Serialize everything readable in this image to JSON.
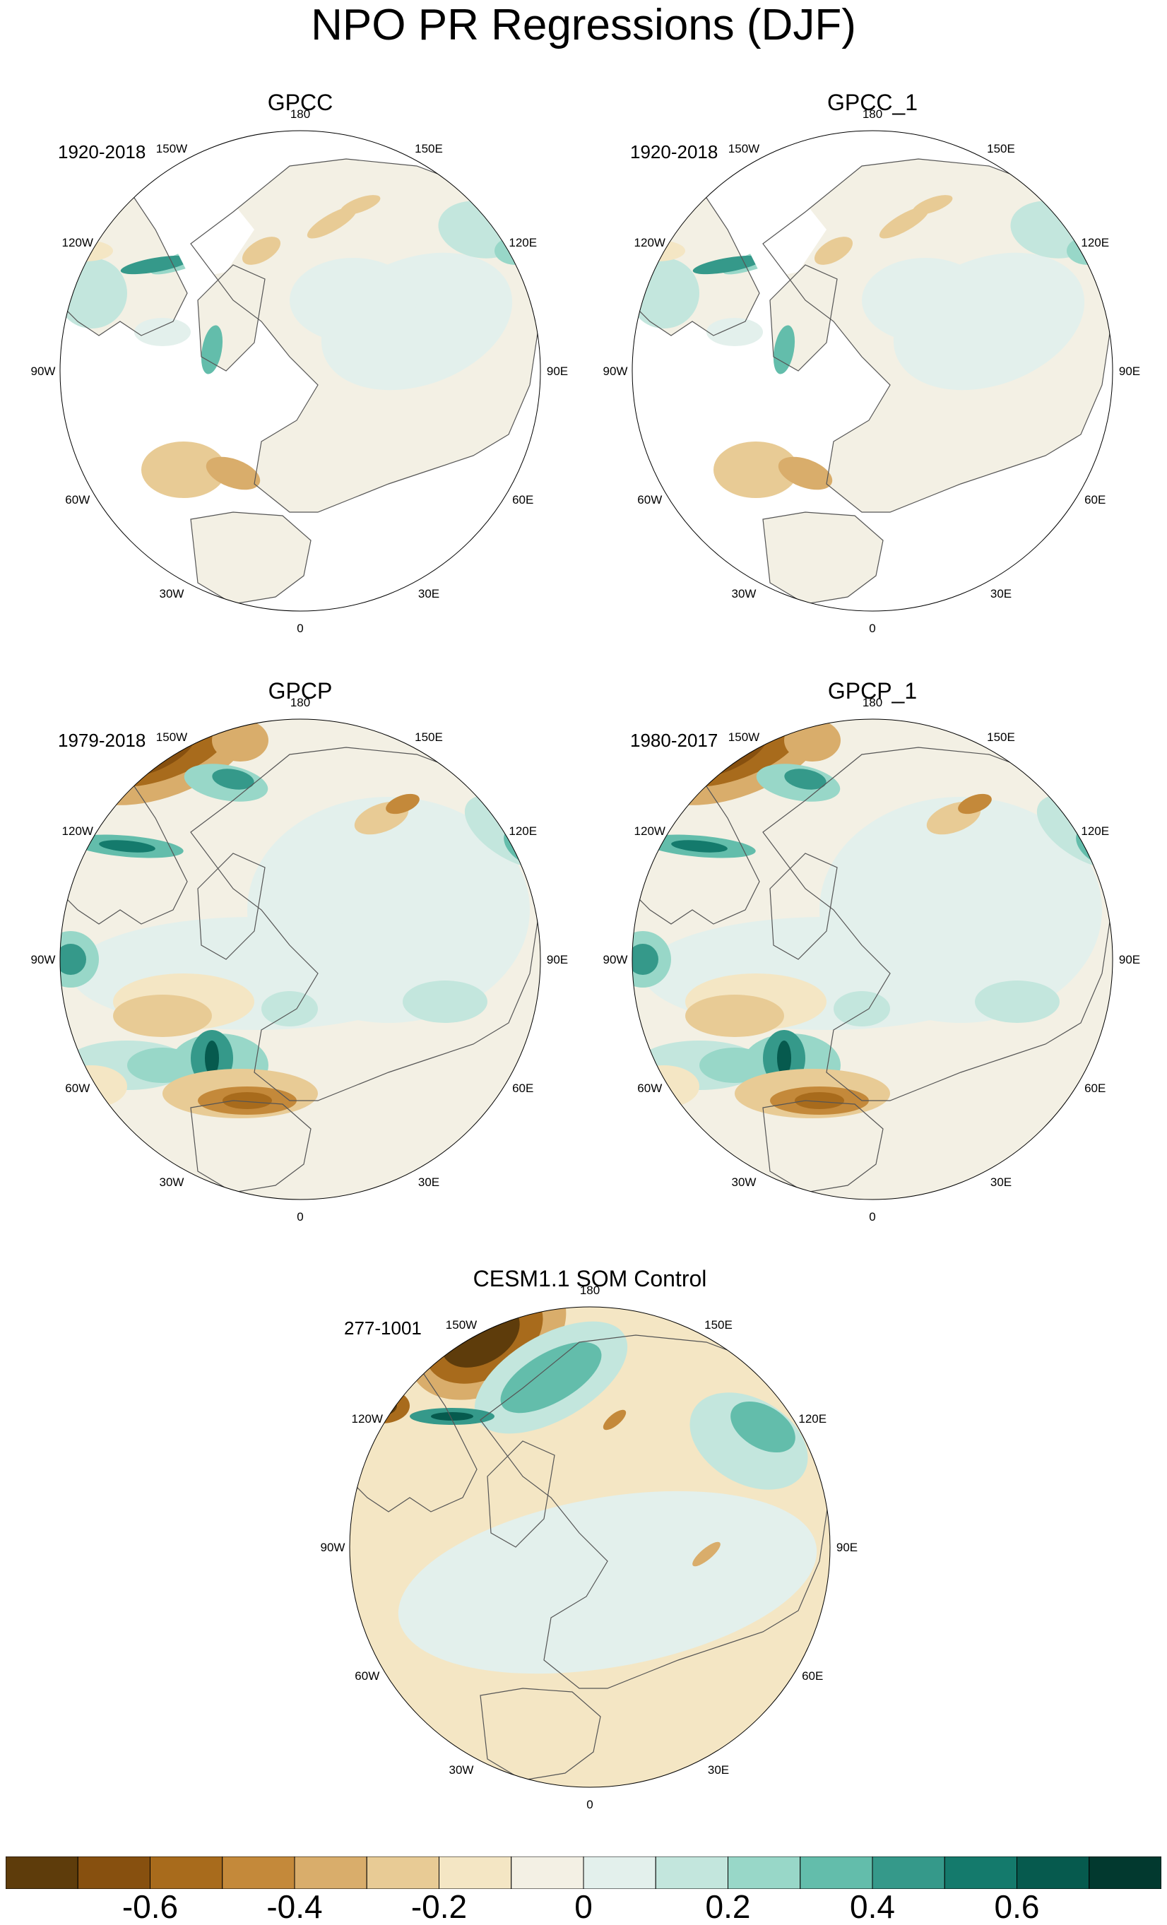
{
  "title": "NPO PR Regressions (DJF)",
  "panels": [
    {
      "id": "gpcc",
      "title": "GPCC",
      "period": "1920-2018"
    },
    {
      "id": "gpcc1",
      "title": "GPCC_1",
      "period": "1920-2018"
    },
    {
      "id": "gpcp",
      "title": "GPCP",
      "period": "1979-2018"
    },
    {
      "id": "gpcp1",
      "title": "GPCP_1",
      "period": "1980-2017"
    },
    {
      "id": "cesm",
      "title": "CESM1.1 SOM Control",
      "period": "277-1001"
    }
  ],
  "longitude_labels": [
    "180",
    "150E",
    "120E",
    "90E",
    "60E",
    "30E",
    "0",
    "30W",
    "60W",
    "90W",
    "120W",
    "150W"
  ],
  "colorbar": {
    "colors": [
      "#5e3c0b",
      "#87500f",
      "#a86b1c",
      "#c4893a",
      "#d9ad6b",
      "#e8cb95",
      "#f4e6c4",
      "#f3f0e4",
      "#e3f0ec",
      "#c3e6dd",
      "#98d7c8",
      "#63bdab",
      "#35998a",
      "#147a6c",
      "#065a4e",
      "#02392f"
    ],
    "tick_labels": [
      "-0.6",
      "-0.4",
      "-0.2",
      "0",
      "0.2",
      "0.4",
      "0.6"
    ]
  }
}
